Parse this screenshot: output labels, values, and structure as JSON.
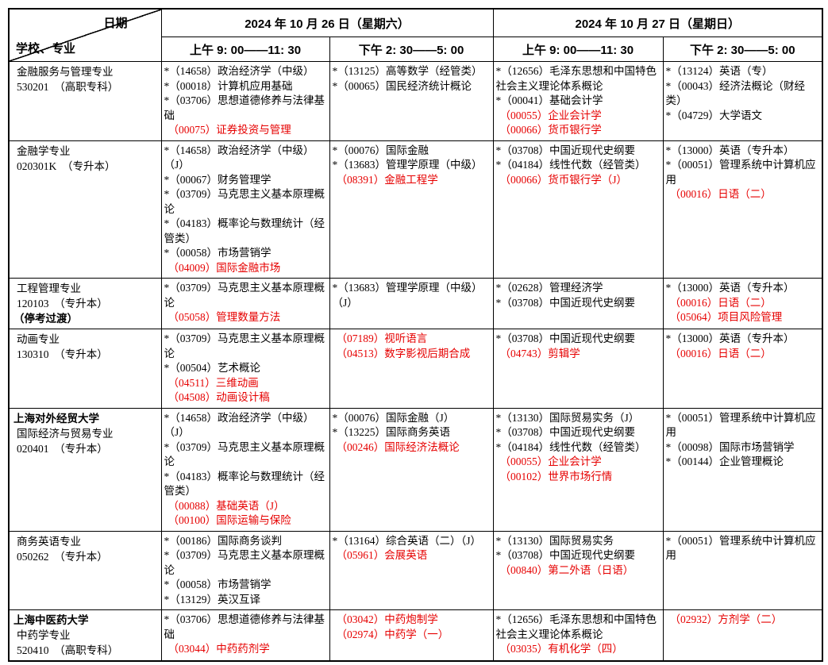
{
  "header": {
    "corner_top": "日期",
    "corner_bottom": "学校、专业",
    "dates": [
      "2024 年 10 月 26 日（星期六）",
      "2024 年 10 月 27 日（星期日）"
    ],
    "sessions": [
      "上午 9: 00——11: 30",
      "下午 2: 30——5: 00",
      "上午 9: 00——11: 30",
      "下午 2: 30——5: 00"
    ]
  },
  "colors": {
    "highlight_red": "#e60000",
    "text": "#000000",
    "border": "#000000"
  },
  "rows": [
    {
      "major_lines": [
        {
          "text": "金融服务与管理专业",
          "bold": false
        },
        {
          "text": "530201　（高职专科）",
          "bold": false
        }
      ],
      "sessions": [
        [
          {
            "star": true,
            "red": false,
            "code": "14658",
            "name": "政治经济学（中级）"
          },
          {
            "star": true,
            "red": false,
            "code": "00018",
            "name": "计算机应用基础"
          },
          {
            "star": true,
            "red": false,
            "code": "03706",
            "name": "思想道德修养与法律基础"
          },
          {
            "star": false,
            "red": true,
            "code": "00075",
            "name": "证券投资与管理"
          }
        ],
        [
          {
            "star": true,
            "red": false,
            "code": "13125",
            "name": "高等数学（经管类）"
          },
          {
            "star": true,
            "red": false,
            "code": "00065",
            "name": "国民经济统计概论"
          }
        ],
        [
          {
            "star": true,
            "red": false,
            "code": "12656",
            "name": "毛泽东思想和中国特色社会主义理论体系概论"
          },
          {
            "star": true,
            "red": false,
            "code": "00041",
            "name": "基础会计学"
          },
          {
            "star": false,
            "red": true,
            "code": "00055",
            "name": "企业会计学"
          },
          {
            "star": false,
            "red": true,
            "code": "00066",
            "name": "货币银行学"
          }
        ],
        [
          {
            "star": true,
            "red": false,
            "code": "13124",
            "name": "英语（专）"
          },
          {
            "star": true,
            "red": false,
            "code": "00043",
            "name": "经济法概论（财经类）"
          },
          {
            "star": true,
            "red": false,
            "code": "04729",
            "name": "大学语文"
          }
        ]
      ]
    },
    {
      "major_lines": [
        {
          "text": "金融学专业",
          "bold": false
        },
        {
          "text": "020301K　（专升本）",
          "bold": false
        }
      ],
      "sessions": [
        [
          {
            "star": true,
            "red": false,
            "code": "14658",
            "name": "政治经济学（中级）（J）"
          },
          {
            "star": true,
            "red": false,
            "code": "00067",
            "name": "财务管理学"
          },
          {
            "star": true,
            "red": false,
            "code": "03709",
            "name": "马克思主义基本原理概论"
          },
          {
            "star": true,
            "red": false,
            "code": "04183",
            "name": "概率论与数理统计（经管类）"
          },
          {
            "star": true,
            "red": false,
            "code": "00058",
            "name": "市场营销学"
          },
          {
            "star": false,
            "red": true,
            "code": "04009",
            "name": "国际金融市场"
          }
        ],
        [
          {
            "star": true,
            "red": false,
            "code": "00076",
            "name": "国际金融"
          },
          {
            "star": true,
            "red": false,
            "code": "13683",
            "name": "管理学原理（中级）"
          },
          {
            "star": false,
            "red": true,
            "code": "08391",
            "name": "金融工程学"
          }
        ],
        [
          {
            "star": true,
            "red": false,
            "code": "03708",
            "name": "中国近现代史纲要"
          },
          {
            "star": true,
            "red": false,
            "code": "04184",
            "name": "线性代数（经管类）"
          },
          {
            "star": false,
            "red": true,
            "code": "00066",
            "name": "货币银行学（J）"
          }
        ],
        [
          {
            "star": true,
            "red": false,
            "code": "13000",
            "name": "英语（专升本）"
          },
          {
            "star": true,
            "red": false,
            "code": "00051",
            "name": "管理系统中计算机应用"
          },
          {
            "star": false,
            "red": true,
            "code": "00016",
            "name": "日语（二）"
          }
        ]
      ]
    },
    {
      "major_lines": [
        {
          "text": "工程管理专业",
          "bold": false
        },
        {
          "text": "120103　（专升本）",
          "bold": false
        },
        {
          "text": "（停考过渡）",
          "bold": true
        }
      ],
      "sessions": [
        [
          {
            "star": true,
            "red": false,
            "code": "03709",
            "name": "马克思主义基本原理概论"
          },
          {
            "star": false,
            "red": true,
            "code": "05058",
            "name": "管理数量方法"
          }
        ],
        [
          {
            "star": true,
            "red": false,
            "code": "13683",
            "name": "管理学原理（中级）（J）"
          }
        ],
        [
          {
            "star": true,
            "red": false,
            "code": "02628",
            "name": "管理经济学"
          },
          {
            "star": true,
            "red": false,
            "code": "03708",
            "name": "中国近现代史纲要"
          }
        ],
        [
          {
            "star": true,
            "red": false,
            "code": "13000",
            "name": "英语（专升本）"
          },
          {
            "star": false,
            "red": true,
            "code": "00016",
            "name": "日语（二）"
          },
          {
            "star": false,
            "red": true,
            "code": "05064",
            "name": "项目风险管理"
          }
        ]
      ]
    },
    {
      "major_lines": [
        {
          "text": "动画专业",
          "bold": false
        },
        {
          "text": "130310　（专升本）",
          "bold": false
        }
      ],
      "sessions": [
        [
          {
            "star": true,
            "red": false,
            "code": "03709",
            "name": "马克思主义基本原理概论"
          },
          {
            "star": true,
            "red": false,
            "code": "00504",
            "name": "艺术概论"
          },
          {
            "star": false,
            "red": true,
            "code": "04511",
            "name": "三维动画"
          },
          {
            "star": false,
            "red": true,
            "code": "04508",
            "name": "动画设计稿"
          }
        ],
        [
          {
            "star": false,
            "red": true,
            "code": "07189",
            "name": "视听语言"
          },
          {
            "star": false,
            "red": true,
            "code": "04513",
            "name": "数字影视后期合成"
          }
        ],
        [
          {
            "star": true,
            "red": false,
            "code": "03708",
            "name": "中国近现代史纲要"
          },
          {
            "star": false,
            "red": true,
            "code": "04743",
            "name": "剪辑学"
          }
        ],
        [
          {
            "star": true,
            "red": false,
            "code": "13000",
            "name": "英语（专升本）"
          },
          {
            "star": false,
            "red": true,
            "code": "00016",
            "name": "日语（二）"
          }
        ]
      ]
    },
    {
      "major_lines": [
        {
          "text": "上海对外经贸大学",
          "bold": true
        },
        {
          "text": "国际经济与贸易专业",
          "bold": false
        },
        {
          "text": "020401　（专升本）",
          "bold": false
        }
      ],
      "sessions": [
        [
          {
            "star": true,
            "red": false,
            "code": "14658",
            "name": "政治经济学（中级）（J）"
          },
          {
            "star": true,
            "red": false,
            "code": "03709",
            "name": "马克思主义基本原理概论"
          },
          {
            "star": true,
            "red": false,
            "code": "04183",
            "name": "概率论与数理统计（经管类）"
          },
          {
            "star": false,
            "red": true,
            "code": "00088",
            "name": "基础英语（J）"
          },
          {
            "star": false,
            "red": true,
            "code": "00100",
            "name": "国际运输与保险"
          }
        ],
        [
          {
            "star": true,
            "red": false,
            "code": "00076",
            "name": "国际金融（J）"
          },
          {
            "star": true,
            "red": false,
            "code": "13225",
            "name": "国际商务英语"
          },
          {
            "star": false,
            "red": true,
            "code": "00246",
            "name": "国际经济法概论"
          }
        ],
        [
          {
            "star": true,
            "red": false,
            "code": "13130",
            "name": "国际贸易实务（J）"
          },
          {
            "star": true,
            "red": false,
            "code": "03708",
            "name": "中国近现代史纲要"
          },
          {
            "star": true,
            "red": false,
            "code": "04184",
            "name": "线性代数（经管类）"
          },
          {
            "star": false,
            "red": true,
            "code": "00055",
            "name": "企业会计学"
          },
          {
            "star": false,
            "red": true,
            "code": "00102",
            "name": "世界市场行情"
          }
        ],
        [
          {
            "star": true,
            "red": false,
            "code": "00051",
            "name": "管理系统中计算机应用"
          },
          {
            "star": true,
            "red": false,
            "code": "00098",
            "name": "国际市场营销学"
          },
          {
            "star": true,
            "red": false,
            "code": "00144",
            "name": "企业管理概论"
          }
        ]
      ]
    },
    {
      "major_lines": [
        {
          "text": "商务英语专业",
          "bold": false
        },
        {
          "text": "050262　（专升本）",
          "bold": false
        }
      ],
      "sessions": [
        [
          {
            "star": true,
            "red": false,
            "code": "00186",
            "name": "国际商务谈判"
          },
          {
            "star": true,
            "red": false,
            "code": "03709",
            "name": "马克思主义基本原理概论"
          },
          {
            "star": true,
            "red": false,
            "code": "00058",
            "name": "市场营销学"
          },
          {
            "star": true,
            "red": false,
            "code": "13129",
            "name": "英汉互译"
          }
        ],
        [
          {
            "star": true,
            "red": false,
            "code": "13164",
            "name": "综合英语（二）（J）"
          },
          {
            "star": false,
            "red": true,
            "code": "05961",
            "name": "会展英语"
          }
        ],
        [
          {
            "star": true,
            "red": false,
            "code": "13130",
            "name": "国际贸易实务"
          },
          {
            "star": true,
            "red": false,
            "code": "03708",
            "name": "中国近现代史纲要"
          },
          {
            "star": false,
            "red": true,
            "code": "00840",
            "name": "第二外语（日语）"
          }
        ],
        [
          {
            "star": true,
            "red": false,
            "code": "00051",
            "name": "管理系统中计算机应用"
          }
        ]
      ]
    },
    {
      "major_lines": [
        {
          "text": "上海中医药大学",
          "bold": true
        },
        {
          "text": "中药学专业",
          "bold": false
        },
        {
          "text": "520410　（高职专科）",
          "bold": false
        }
      ],
      "sessions": [
        [
          {
            "star": true,
            "red": false,
            "code": "03706",
            "name": "思想道德修养与法律基础"
          },
          {
            "star": false,
            "red": true,
            "code": "03044",
            "name": "中药药剂学"
          }
        ],
        [
          {
            "star": false,
            "red": true,
            "code": "03042",
            "name": "中药炮制学"
          },
          {
            "star": false,
            "red": true,
            "code": "02974",
            "name": "中药学（一）"
          }
        ],
        [
          {
            "star": true,
            "red": false,
            "code": "12656",
            "name": "毛泽东思想和中国特色社会主义理论体系概论"
          },
          {
            "star": false,
            "red": true,
            "code": "03035",
            "name": "有机化学（四）"
          }
        ],
        [
          {
            "star": false,
            "red": true,
            "code": "02932",
            "name": "方剂学（二）"
          }
        ]
      ]
    }
  ]
}
